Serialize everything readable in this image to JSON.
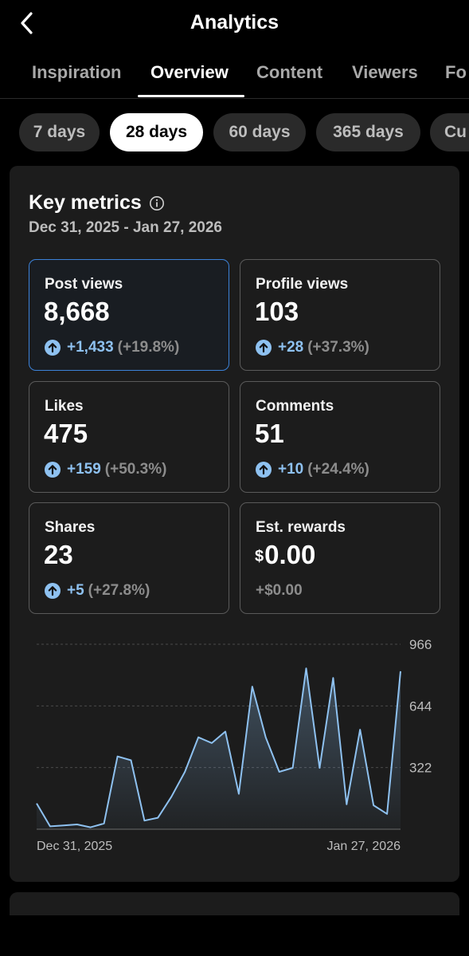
{
  "header": {
    "title": "Analytics",
    "back_icon": "chevron-left-icon"
  },
  "tabs": [
    {
      "label": "Inspiration",
      "active": false
    },
    {
      "label": "Overview",
      "active": true
    },
    {
      "label": "Content",
      "active": false
    },
    {
      "label": "Viewers",
      "active": false
    },
    {
      "label": "Fo",
      "active": false
    }
  ],
  "ranges": [
    {
      "label": "7 days",
      "active": false
    },
    {
      "label": "28 days",
      "active": true
    },
    {
      "label": "60 days",
      "active": false
    },
    {
      "label": "365 days",
      "active": false
    },
    {
      "label": "Cu",
      "active": false
    }
  ],
  "key_metrics": {
    "title": "Key metrics",
    "info_icon": "info-icon",
    "date_range": "Dec 31, 2025 - Jan 27, 2026",
    "metrics": [
      {
        "label": "Post views",
        "value": "8,668",
        "delta": "+1,433",
        "pct": "(+19.8%)",
        "trend": "up",
        "selected": true
      },
      {
        "label": "Profile views",
        "value": "103",
        "delta": "+28",
        "pct": "(+37.3%)",
        "trend": "up",
        "selected": false
      },
      {
        "label": "Likes",
        "value": "475",
        "delta": "+159",
        "pct": "(+50.3%)",
        "trend": "up",
        "selected": false
      },
      {
        "label": "Comments",
        "value": "51",
        "delta": "+10",
        "pct": "(+24.4%)",
        "trend": "up",
        "selected": false
      },
      {
        "label": "Shares",
        "value": "23",
        "delta": "+5",
        "pct": "(+27.8%)",
        "trend": "up",
        "selected": false
      },
      {
        "label": "Est. rewards",
        "currency": "$",
        "value": "0.00",
        "delta": "+$0.00",
        "pct": "",
        "trend": "none",
        "selected": false
      }
    ]
  },
  "colors": {
    "accent_blue": "#8ec1f0",
    "selected_border": "#3c82d8",
    "card_bg": "#1c1c1c",
    "muted_text": "#8c8c8c"
  },
  "chart_data": {
    "type": "area",
    "title": "",
    "xlabel": "",
    "ylabel": "",
    "x_tick_labels": [
      "Dec 31, 2025",
      "Jan 27, 2026"
    ],
    "y_ticks": [
      322,
      644,
      966
    ],
    "ylim": [
      0,
      966
    ],
    "grid": "dashed horizontal",
    "series": [
      {
        "values": [
          135,
          15,
          20,
          25,
          10,
          30,
          380,
          360,
          45,
          60,
          170,
          300,
          480,
          450,
          510,
          185,
          745,
          480,
          300,
          320,
          840,
          320,
          790,
          130,
          520,
          125,
          80,
          825
        ]
      }
    ]
  }
}
